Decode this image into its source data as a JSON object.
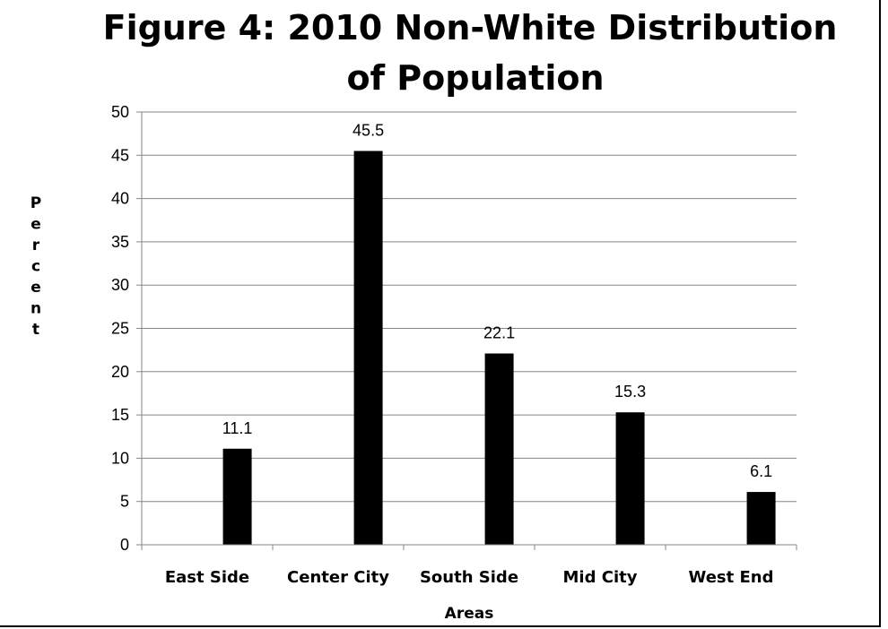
{
  "chart_data": {
    "type": "bar",
    "title_lines": [
      "Figure 4: 2010 Non-White Distribution",
      "of Population"
    ],
    "categories": [
      "East Side",
      "Center City",
      "South Side",
      "Mid City",
      "West End"
    ],
    "series": [
      {
        "values": [
          11.1,
          45.5,
          22.1,
          15.3,
          6.1
        ]
      }
    ],
    "data_labels": [
      "11.1",
      "45.5",
      "22.1",
      "15.3",
      "6.1"
    ],
    "xlabel": "Areas",
    "ylabel": "Percent",
    "ylim": [
      0,
      50
    ],
    "yticks": [
      0,
      5,
      10,
      15,
      20,
      25,
      30,
      35,
      40,
      45,
      50
    ],
    "grid": true,
    "legend": "none",
    "colors": {
      "bar": "#000000",
      "grid": "#868686",
      "text": "#000000"
    }
  }
}
